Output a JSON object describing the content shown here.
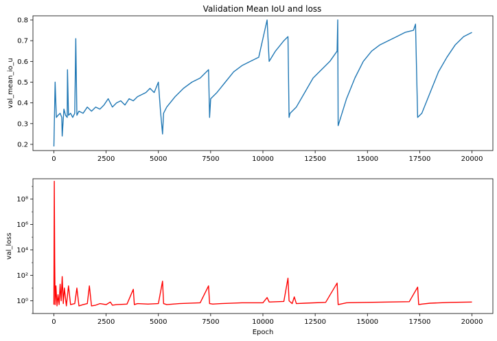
{
  "chart_data": [
    {
      "type": "line",
      "title": "Validation Mean IoU and loss",
      "xlabel": "",
      "ylabel": "val_mean_io_u",
      "xlim": [
        -1000,
        21000
      ],
      "ylim": [
        0.17,
        0.82
      ],
      "xticks": [
        0,
        2500,
        5000,
        7500,
        10000,
        12500,
        15000,
        17500,
        20000
      ],
      "yticks": [
        0.2,
        0.3,
        0.4,
        0.5,
        0.6,
        0.7,
        0.8
      ],
      "yticklabels": [
        "0.2",
        "0.3",
        "0.4",
        "0.5",
        "0.6",
        "0.7",
        "0.8"
      ],
      "grid": false,
      "series": [
        {
          "color": "#1f77b4",
          "x": [
            0,
            60,
            120,
            200,
            300,
            380,
            400,
            480,
            560,
            640,
            650,
            700,
            800,
            900,
            1000,
            1050,
            1100,
            1200,
            1400,
            1600,
            1800,
            2000,
            2200,
            2400,
            2600,
            2800,
            3000,
            3200,
            3400,
            3600,
            3800,
            4000,
            4200,
            4400,
            4600,
            4800,
            5000,
            5100,
            5200,
            5250,
            5400,
            5800,
            6200,
            6600,
            7000,
            7400,
            7450,
            7500,
            7800,
            8200,
            8600,
            9000,
            9400,
            9800,
            10200,
            10300,
            10600,
            11000,
            11200,
            11250,
            11300,
            11600,
            12000,
            12400,
            12800,
            13200,
            13550,
            13580,
            13600,
            14000,
            14400,
            14800,
            15200,
            15600,
            16000,
            16400,
            16800,
            17200,
            17300,
            17400,
            17600,
            18000,
            18400,
            18800,
            19200,
            19600,
            20000
          ],
          "values": [
            0.19,
            0.5,
            0.33,
            0.34,
            0.35,
            0.33,
            0.24,
            0.37,
            0.34,
            0.33,
            0.56,
            0.34,
            0.35,
            0.33,
            0.35,
            0.71,
            0.34,
            0.36,
            0.35,
            0.38,
            0.36,
            0.38,
            0.37,
            0.39,
            0.42,
            0.38,
            0.4,
            0.41,
            0.39,
            0.42,
            0.41,
            0.43,
            0.44,
            0.45,
            0.47,
            0.45,
            0.5,
            0.36,
            0.25,
            0.35,
            0.38,
            0.43,
            0.47,
            0.5,
            0.52,
            0.56,
            0.33,
            0.42,
            0.45,
            0.5,
            0.55,
            0.58,
            0.6,
            0.62,
            0.8,
            0.6,
            0.65,
            0.7,
            0.72,
            0.33,
            0.35,
            0.38,
            0.45,
            0.52,
            0.56,
            0.6,
            0.65,
            0.8,
            0.29,
            0.42,
            0.52,
            0.6,
            0.65,
            0.68,
            0.7,
            0.72,
            0.74,
            0.75,
            0.78,
            0.33,
            0.35,
            0.45,
            0.55,
            0.62,
            0.68,
            0.72,
            0.74
          ]
        }
      ]
    },
    {
      "type": "line",
      "title": "",
      "xlabel": "Epoch",
      "ylabel": "val_loss",
      "scale_y": "log",
      "xlim": [
        -1000,
        21000
      ],
      "ylim_log10": [
        -1,
        9.6
      ],
      "xticks": [
        0,
        2500,
        5000,
        7500,
        10000,
        12500,
        15000,
        17500,
        20000
      ],
      "yticks_log10": [
        0,
        2,
        4,
        6,
        8
      ],
      "yticklabels": [
        "10⁰",
        "10²",
        "10⁴",
        "10⁶",
        "10⁸"
      ],
      "grid": false,
      "series": [
        {
          "color": "#ff0000",
          "x": [
            0,
            20,
            40,
            60,
            100,
            150,
            200,
            250,
            300,
            350,
            400,
            450,
            500,
            600,
            700,
            800,
            1000,
            1100,
            1200,
            1400,
            1600,
            1700,
            1800,
            2000,
            2200,
            2500,
            2700,
            2800,
            3000,
            3500,
            3800,
            3850,
            4000,
            4500,
            5000,
            5200,
            5250,
            5400,
            6000,
            7000,
            7400,
            7450,
            7600,
            8000,
            9000,
            10000,
            10200,
            10300,
            11000,
            11200,
            11250,
            11400,
            11500,
            11600,
            12000,
            13000,
            13550,
            13600,
            14000,
            15000,
            16000,
            17000,
            17400,
            17450,
            17600,
            18000,
            19000,
            20000
          ],
          "values": [
            0.5,
            2500000000.0,
            1000,
            0.5,
            15,
            0.4,
            3,
            0.5,
            20,
            1,
            80,
            0.6,
            10,
            0.4,
            15,
            0.5,
            0.6,
            10,
            0.4,
            0.5,
            0.6,
            15,
            0.4,
            0.45,
            0.6,
            0.5,
            0.8,
            0.45,
            0.5,
            0.55,
            8,
            0.5,
            0.6,
            0.55,
            0.6,
            35,
            0.6,
            0.5,
            0.6,
            0.7,
            15,
            0.6,
            0.55,
            0.6,
            0.7,
            0.7,
            1.8,
            0.8,
            0.9,
            60,
            1,
            0.6,
            2,
            0.6,
            0.65,
            0.75,
            25,
            0.5,
            0.7,
            0.75,
            0.8,
            0.85,
            12,
            0.5,
            0.55,
            0.65,
            0.75,
            0.8
          ]
        }
      ]
    }
  ]
}
